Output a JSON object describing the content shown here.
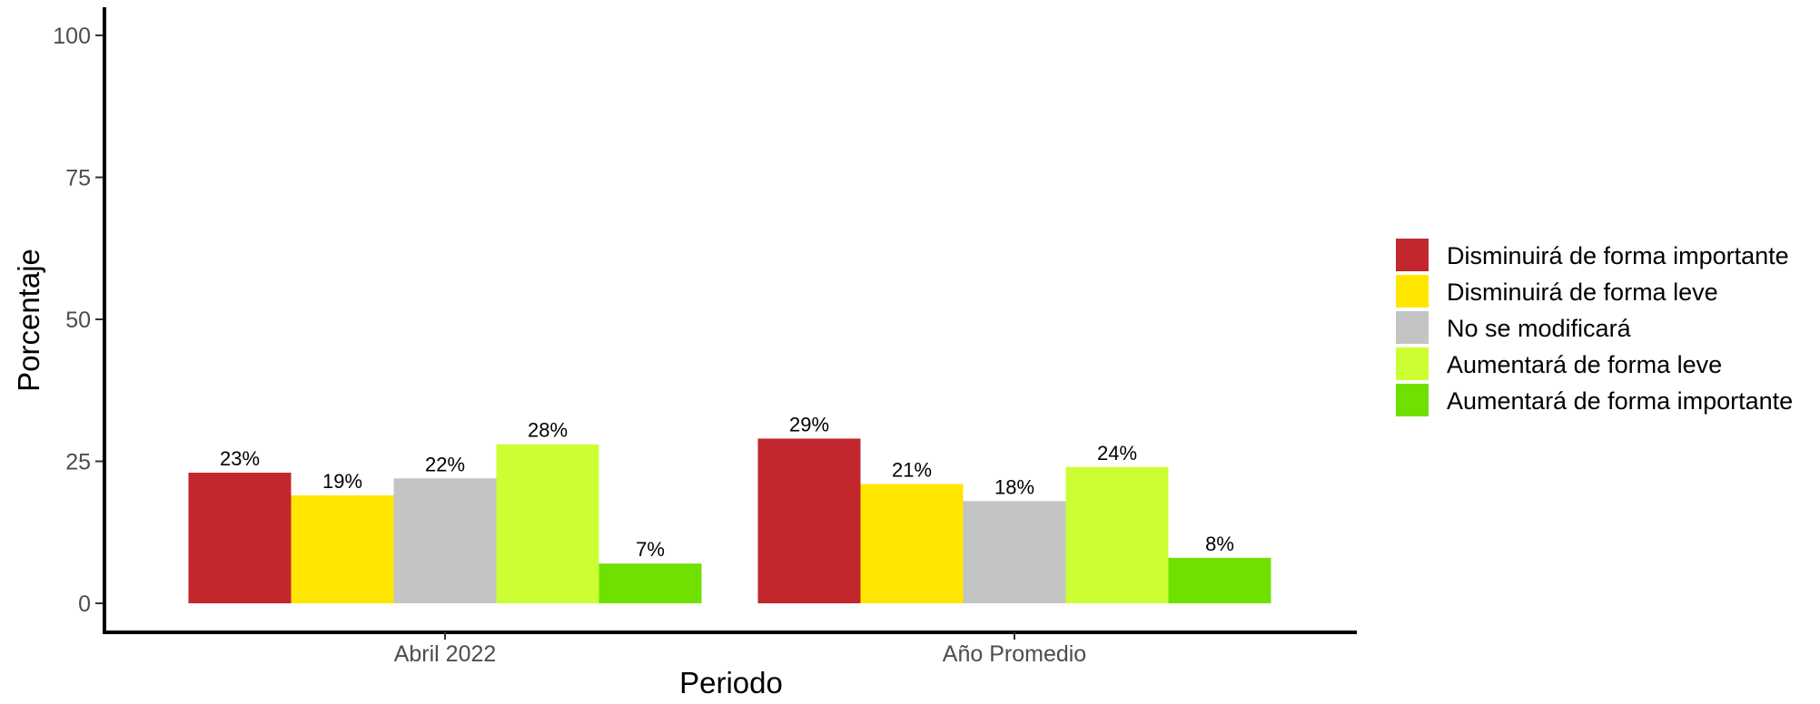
{
  "chart_data": {
    "type": "bar",
    "xlabel": "Periodo",
    "ylabel": "Porcentaje",
    "ylim": [
      0,
      100
    ],
    "yticks": [
      0,
      25,
      50,
      75,
      100
    ],
    "categories": [
      "Abril 2022",
      "Año Promedio"
    ],
    "series": [
      {
        "name": "Disminuirá de forma importante",
        "color": "#c1272d",
        "values": [
          23,
          29
        ],
        "labels": [
          "23%",
          "29%"
        ]
      },
      {
        "name": "Disminuirá de forma leve",
        "color": "#ffe600",
        "values": [
          19,
          21
        ],
        "labels": [
          "19%",
          "21%"
        ]
      },
      {
        "name": "No se modificará",
        "color": "#c2c5c3",
        "values": [
          22,
          18
        ],
        "labels": [
          "22%",
          "18%"
        ]
      },
      {
        "name": "Aumentará de forma leve",
        "color": "#ccff33",
        "values": [
          28,
          24
        ],
        "labels": [
          "28%",
          "24%"
        ]
      },
      {
        "name": "Aumentará de forma importante",
        "color": "#6fe000",
        "values": [
          7,
          8
        ],
        "labels": [
          "7%",
          "8%"
        ]
      }
    ],
    "grid": false,
    "legend_position": "right"
  }
}
